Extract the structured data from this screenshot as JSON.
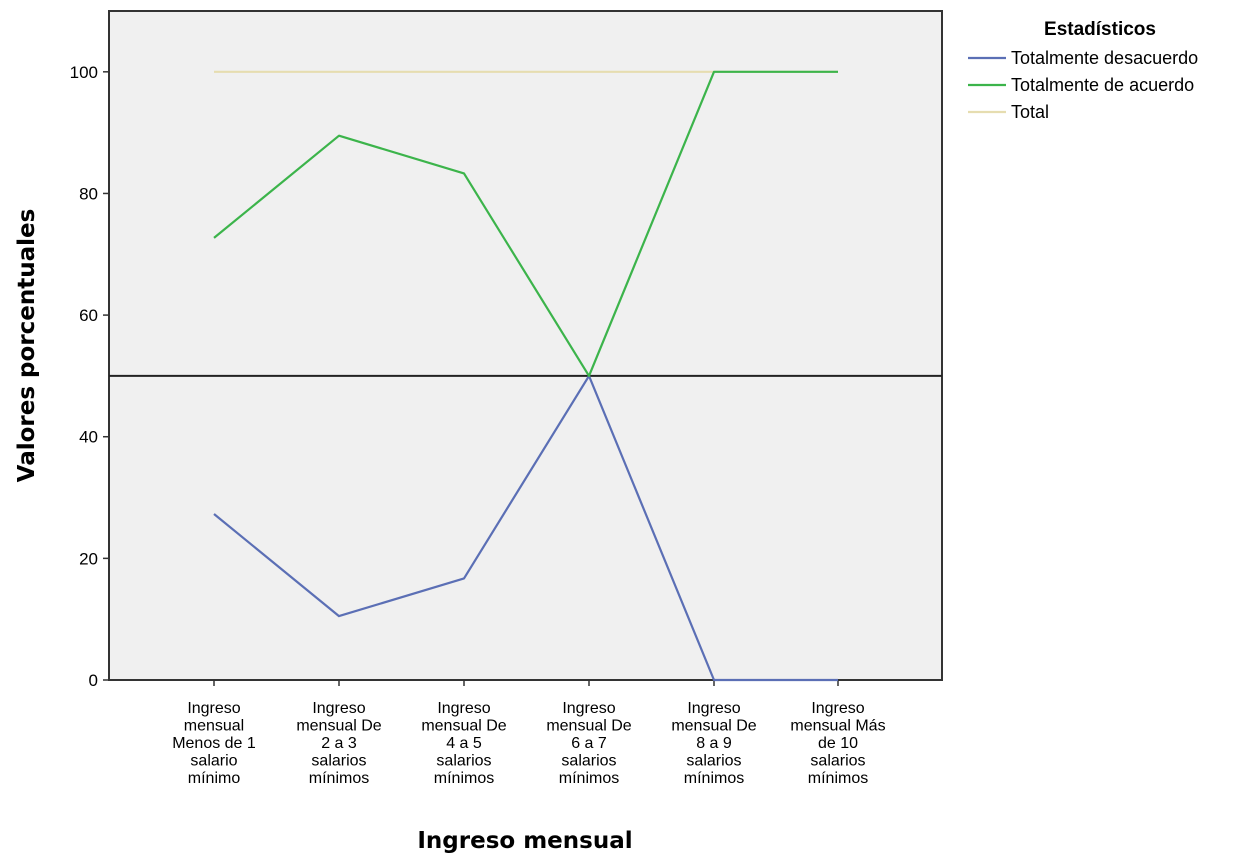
{
  "chart_data": {
    "type": "line",
    "xlabel": "Ingreso mensual",
    "ylabel": "Valores porcentuales",
    "ylim": [
      0,
      110
    ],
    "yticks": [
      0,
      20,
      40,
      60,
      80,
      100
    ],
    "reference_line": 50,
    "grid": false,
    "legend_placement": "outside-top-right",
    "legend_title": "Estadísticos",
    "categories": [
      [
        "Ingreso",
        "mensual",
        "Menos de 1",
        "salario",
        "mínimo"
      ],
      [
        "Ingreso",
        "mensual De",
        "2 a 3",
        "salarios",
        "mínimos"
      ],
      [
        "Ingreso",
        "mensual De",
        "4 a 5",
        "salarios",
        "mínimos"
      ],
      [
        "Ingreso",
        "mensual De",
        "6 a 7",
        "salarios",
        "mínimos"
      ],
      [
        "Ingreso",
        "mensual De",
        "8 a 9",
        "salarios",
        "mínimos"
      ],
      [
        "Ingreso",
        "mensual Más",
        "de 10",
        "salarios",
        "mínimos"
      ]
    ],
    "series": [
      {
        "name": "Totalmente desacuerdo",
        "color": "#5b6fb5",
        "values": [
          27.3,
          10.5,
          16.7,
          50,
          0,
          0
        ]
      },
      {
        "name": "Totalmente de acuerdo",
        "color": "#3cb44b",
        "values": [
          72.7,
          89.5,
          83.3,
          50,
          100,
          100
        ]
      },
      {
        "name": "Total",
        "color": "#e6ddb0",
        "values": [
          100,
          100,
          100,
          100,
          100,
          100
        ]
      }
    ],
    "colors": {
      "plot_background": "#f0f0f0",
      "frame": "#333333",
      "reference_line": "#222222"
    }
  }
}
